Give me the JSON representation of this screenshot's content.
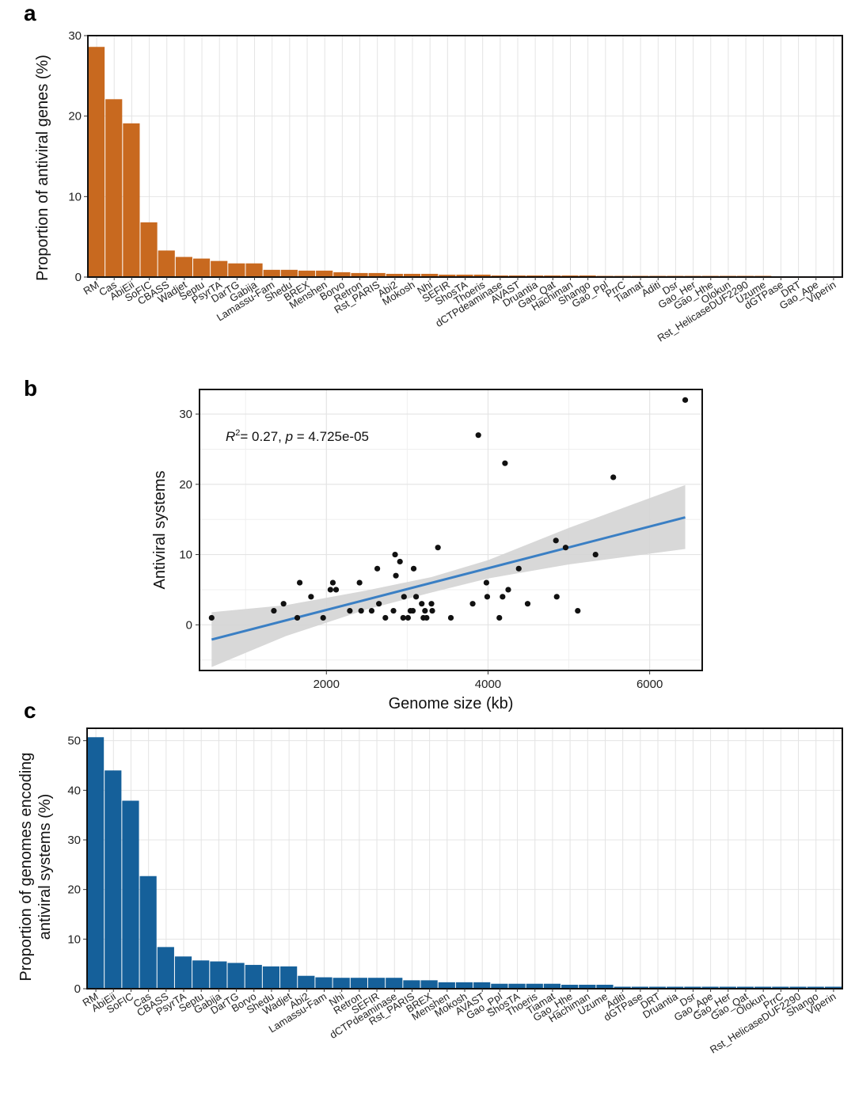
{
  "panels": {
    "a": "a",
    "b": "b",
    "c": "c"
  },
  "colors": {
    "bar_a": "#c8691f",
    "bar_c": "#15609a",
    "line": "#3a7fc4",
    "ribbon": "#d4d4d4",
    "grid": "#e4e4e4",
    "point": "#111111"
  },
  "chart_data": [
    {
      "id": "a",
      "type": "bar",
      "title": "",
      "xlabel": "",
      "ylabel": "Proportion of antiviral genes (%)",
      "ylim": [
        0,
        30
      ],
      "yticks": [
        0,
        10,
        20,
        30
      ],
      "categories": [
        "RM",
        "Cas",
        "AbiEii",
        "SoFIC",
        "CBASS",
        "Wadjet",
        "Septu",
        "PsyrTA",
        "DarTG",
        "Gabija",
        "Lamassu-Fam",
        "Shedu",
        "BREX",
        "Menshen",
        "Borvo",
        "Retron",
        "Rst_PARIS",
        "Abi2",
        "Mokosh",
        "Nhi",
        "SEFIR",
        "ShosTA",
        "Thoeris",
        "dCTPdeaminase",
        "AVAST",
        "Druantia",
        "Gao_Qat",
        "Hachiman",
        "Shango",
        "Gao_Ppl",
        "PrrC",
        "Tiamat",
        "Aditi",
        "Dsr",
        "Gao_Her",
        "Gao_Hhe",
        "Olokun",
        "Rst_HelicaseDUF2290",
        "Uzume",
        "dGTPase",
        "DRT",
        "Gao_Ape",
        "Viperin"
      ],
      "values": [
        28.6,
        22.1,
        19.1,
        6.8,
        3.3,
        2.5,
        2.3,
        2.0,
        1.7,
        1.7,
        0.9,
        0.9,
        0.8,
        0.8,
        0.6,
        0.5,
        0.5,
        0.4,
        0.4,
        0.4,
        0.3,
        0.3,
        0.3,
        0.2,
        0.2,
        0.2,
        0.2,
        0.2,
        0.2,
        0.15,
        0.15,
        0.15,
        0.15,
        0.15,
        0.15,
        0.15,
        0.15,
        0.15,
        0.15,
        0.1,
        0.1,
        0.1,
        0.1
      ]
    },
    {
      "id": "b",
      "type": "scatter",
      "xlabel": "Genome size (kb)",
      "ylabel": "Antiviral systems",
      "xlim": [
        430,
        6650
      ],
      "ylim": [
        -6.5,
        33.5
      ],
      "xticks": [
        2000,
        4000,
        6000
      ],
      "yticks": [
        0,
        10,
        20,
        30
      ],
      "annotation": {
        "r_label": "R",
        "r_sup": "2",
        "stat_text": "= 0.27, ",
        "p_label": "p",
        "p_text": " = 4.725e-05"
      },
      "points": [
        [
          580,
          1
        ],
        [
          1350,
          2
        ],
        [
          1470,
          3
        ],
        [
          1640,
          1
        ],
        [
          1670,
          6
        ],
        [
          1810,
          4
        ],
        [
          1960,
          1
        ],
        [
          2050,
          5
        ],
        [
          2080,
          6
        ],
        [
          2120,
          5
        ],
        [
          2290,
          2
        ],
        [
          2410,
          6
        ],
        [
          2430,
          2
        ],
        [
          2560,
          2
        ],
        [
          2630,
          8
        ],
        [
          2650,
          3
        ],
        [
          2730,
          1
        ],
        [
          2830,
          2
        ],
        [
          2850,
          10
        ],
        [
          2860,
          7
        ],
        [
          2910,
          9
        ],
        [
          2950,
          1
        ],
        [
          2960,
          4
        ],
        [
          3010,
          1
        ],
        [
          3040,
          2
        ],
        [
          3070,
          2
        ],
        [
          3080,
          8
        ],
        [
          3110,
          4
        ],
        [
          3180,
          3
        ],
        [
          3200,
          1
        ],
        [
          3220,
          2
        ],
        [
          3240,
          1
        ],
        [
          3300,
          3
        ],
        [
          3310,
          2
        ],
        [
          3380,
          11
        ],
        [
          3540,
          1
        ],
        [
          3810,
          3
        ],
        [
          3880,
          27
        ],
        [
          3980,
          6
        ],
        [
          3990,
          4
        ],
        [
          4140,
          1
        ],
        [
          4180,
          4
        ],
        [
          4210,
          23
        ],
        [
          4250,
          5
        ],
        [
          4380,
          8
        ],
        [
          4490,
          3
        ],
        [
          4840,
          12
        ],
        [
          4850,
          4
        ],
        [
          4960,
          11
        ],
        [
          5110,
          2
        ],
        [
          5330,
          10
        ],
        [
          5550,
          21
        ],
        [
          6440,
          32
        ]
      ],
      "fit": {
        "x": [
          580,
          6440
        ],
        "y": [
          -2.1,
          15.3
        ]
      },
      "ribbon_upper": [
        [
          580,
          1.8
        ],
        [
          1500,
          2.8
        ],
        [
          2500,
          4.9
        ],
        [
          3300,
          6.8
        ],
        [
          4000,
          9.2
        ],
        [
          5000,
          13.8
        ],
        [
          6440,
          19.9
        ]
      ],
      "ribbon_lower": [
        [
          580,
          -6.0
        ],
        [
          1500,
          -1.6
        ],
        [
          2500,
          2.2
        ],
        [
          3300,
          4.6
        ],
        [
          4000,
          6.6
        ],
        [
          5000,
          8.6
        ],
        [
          6440,
          10.8
        ]
      ]
    },
    {
      "id": "c",
      "type": "bar",
      "xlabel": "",
      "ylabel": "Proportion of genomes encoding",
      "ylabel_line2": "antiviral systems (%)",
      "ylim": [
        0,
        52.5
      ],
      "yticks": [
        0,
        10,
        20,
        30,
        40,
        50
      ],
      "categories": [
        "RM",
        "AbiEii",
        "SoFIC",
        "Cas",
        "CBASS",
        "PsyrTA",
        "Septu",
        "Gabija",
        "DarTG",
        "Borvo",
        "Shedu",
        "Wadjet",
        "Abi2",
        "Lamassu-Fam",
        "Nhi",
        "Retron",
        "SEFIR",
        "dCTPdeaminase",
        "Rst_PARIS",
        "BREX",
        "Menshen",
        "Mokosh",
        "AVAST",
        "Gao_Ppl",
        "ShosTA",
        "Thoeris",
        "Tiamat",
        "Gao_Hhe",
        "Hachiman",
        "Uzume",
        "Aditi",
        "dGTPase",
        "DRT",
        "Druantia",
        "Dsr",
        "Gao_Ape",
        "Gao_Her",
        "Gao_Qat",
        "Olokun",
        "PrrC",
        "Rst_HelicaseDUF2290",
        "Shango",
        "Viperin"
      ],
      "values": [
        50.7,
        44.0,
        37.9,
        22.7,
        8.4,
        6.5,
        5.7,
        5.5,
        5.2,
        4.8,
        4.5,
        4.5,
        2.6,
        2.3,
        2.2,
        2.2,
        2.2,
        2.2,
        1.7,
        1.7,
        1.3,
        1.3,
        1.3,
        1.0,
        1.0,
        1.0,
        1.0,
        0.8,
        0.8,
        0.8,
        0.4,
        0.4,
        0.4,
        0.4,
        0.4,
        0.4,
        0.4,
        0.4,
        0.4,
        0.4,
        0.4,
        0.4,
        0.4
      ]
    }
  ]
}
